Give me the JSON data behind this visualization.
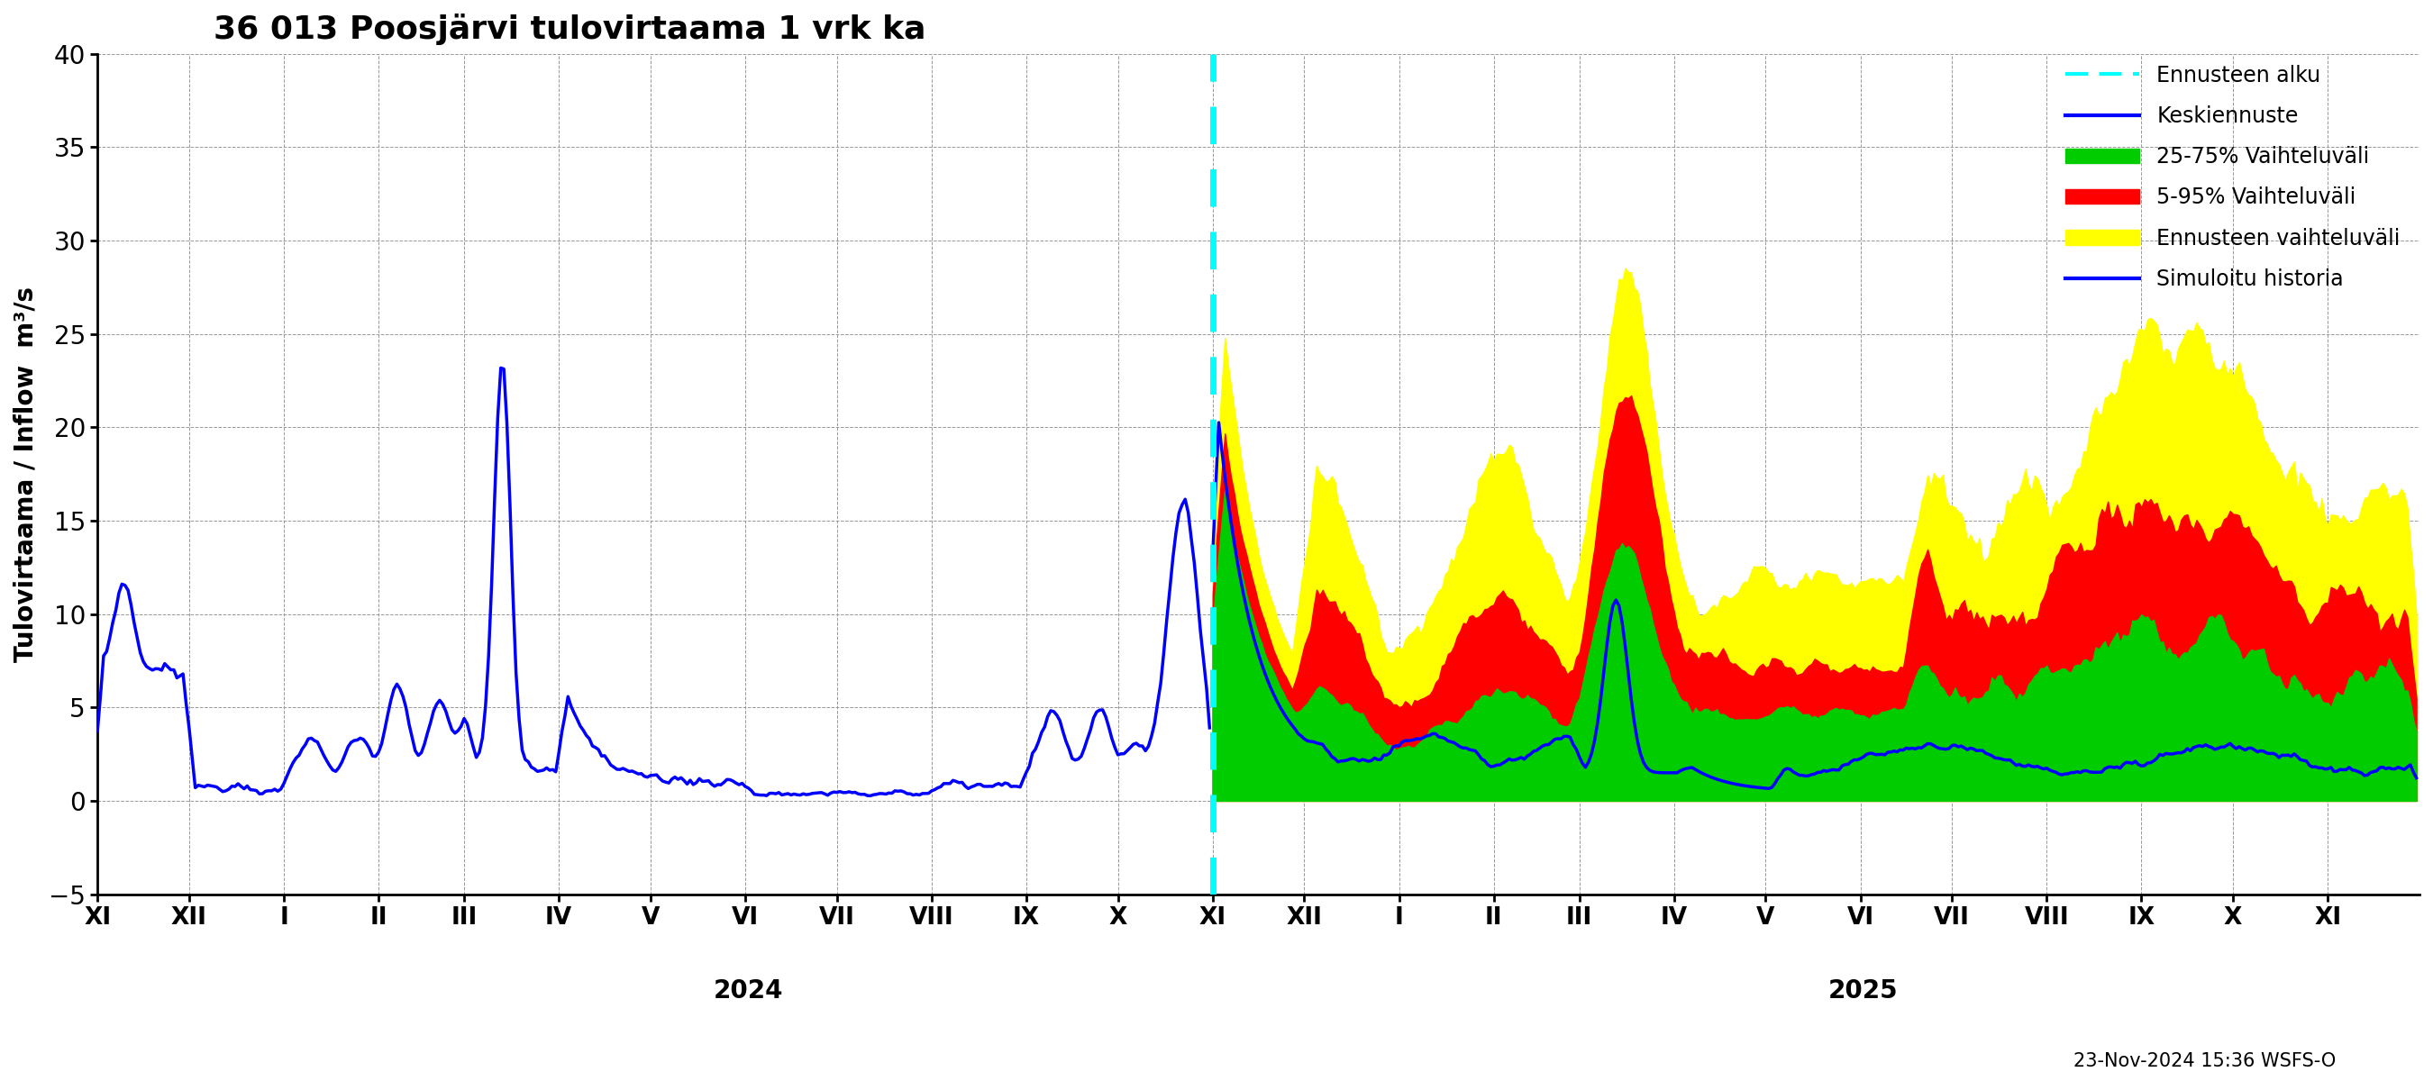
{
  "title": "36 013 Poosjärvi tulovirtaama 1 vrk ka",
  "ylabel": "Tulovirtaama / Inflow  m³/s",
  "ylim": [
    -5,
    40
  ],
  "yticks": [
    -5,
    0,
    5,
    10,
    15,
    20,
    25,
    30,
    35,
    40
  ],
  "background_color": "#ffffff",
  "timestamp_label": "23-Nov-2024 15:36 WSFS-O",
  "legend_entries": [
    {
      "label": "Ennusteen alku",
      "color": "#00ffff",
      "linestyle": "dashed"
    },
    {
      "label": "Keskiennuste",
      "color": "#0000ff",
      "linestyle": "solid"
    },
    {
      "label": "25-75% Vaihteluväli",
      "color": "#00cc00"
    },
    {
      "label": "5-95% Vaihteluväli",
      "color": "#ff0000"
    },
    {
      "label": "Ennusteen vaihteluväli",
      "color": "#ffff00"
    },
    {
      "label": "Simuloitu historia",
      "color": "#0000ff",
      "linestyle": "solid"
    }
  ],
  "colors": {
    "hist_line": "#0000ff",
    "forecast_line": "#0000ff",
    "band_yellow": "#ffff00",
    "band_red": "#ff0000",
    "band_green": "#00cc00",
    "vline_cyan": "#00ffff",
    "grid": "#999999"
  },
  "month_labels": [
    "XI",
    "XII",
    "I",
    "II",
    "III",
    "IV",
    "V",
    "VI",
    "VII",
    "VIII",
    "IX",
    "X",
    "XI",
    "XII",
    "I",
    "II",
    "III",
    "IV",
    "V",
    "VI",
    "VII",
    "VIII",
    "IX",
    "X",
    "XI"
  ],
  "month_lengths": [
    30,
    31,
    31,
    28,
    31,
    30,
    31,
    30,
    31,
    31,
    30,
    31,
    30,
    31,
    31,
    28,
    31,
    30,
    31,
    30,
    31,
    31,
    30,
    31,
    30
  ]
}
